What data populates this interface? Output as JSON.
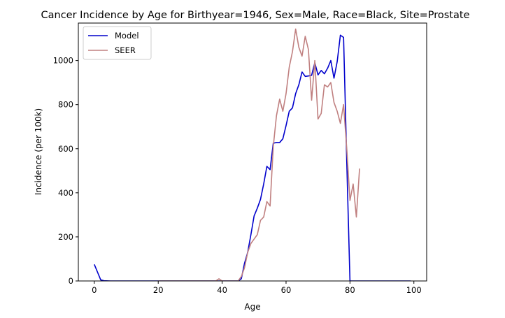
{
  "chart_data": {
    "type": "line",
    "title": "Cancer Incidence by Age for Birthyear=1946, Sex=Male, Race=Black, Site=Prostate",
    "xlabel": "Age",
    "ylabel": "Incidence (per 100k)",
    "xlim": [
      -5,
      104
    ],
    "ylim": [
      0,
      1170
    ],
    "xticks": [
      0,
      20,
      40,
      60,
      80,
      100
    ],
    "yticks": [
      0,
      200,
      400,
      600,
      800,
      1000
    ],
    "grid": false,
    "legend_position": "top-left",
    "series": [
      {
        "name": "Model",
        "color": "#0000cc",
        "points": [
          [
            0,
            75
          ],
          [
            1,
            40
          ],
          [
            2,
            5
          ],
          [
            3,
            1
          ],
          [
            5,
            0
          ],
          [
            10,
            0
          ],
          [
            20,
            0
          ],
          [
            30,
            0
          ],
          [
            40,
            0
          ],
          [
            45,
            0
          ],
          [
            46,
            10
          ],
          [
            47,
            80
          ],
          [
            48,
            130
          ],
          [
            49,
            210
          ],
          [
            50,
            295
          ],
          [
            51,
            330
          ],
          [
            52,
            370
          ],
          [
            53,
            440
          ],
          [
            54,
            520
          ],
          [
            55,
            505
          ],
          [
            56,
            625
          ],
          [
            57,
            628
          ],
          [
            58,
            628
          ],
          [
            59,
            645
          ],
          [
            60,
            705
          ],
          [
            61,
            770
          ],
          [
            62,
            785
          ],
          [
            63,
            850
          ],
          [
            64,
            890
          ],
          [
            65,
            948
          ],
          [
            66,
            928
          ],
          [
            67,
            930
          ],
          [
            68,
            933
          ],
          [
            69,
            990
          ],
          [
            70,
            935
          ],
          [
            71,
            955
          ],
          [
            72,
            940
          ],
          [
            73,
            965
          ],
          [
            74,
            1000
          ],
          [
            75,
            920
          ],
          [
            76,
            995
          ],
          [
            77,
            1115
          ],
          [
            78,
            1105
          ],
          [
            79,
            540
          ],
          [
            80,
            0
          ],
          [
            85,
            0
          ],
          [
            90,
            0
          ],
          [
            95,
            0
          ],
          [
            99,
            0
          ]
        ]
      },
      {
        "name": "SEER",
        "color": "#c08080",
        "points": [
          [
            20,
            0
          ],
          [
            30,
            0
          ],
          [
            38,
            0
          ],
          [
            39,
            10
          ],
          [
            40,
            0
          ],
          [
            44,
            0
          ],
          [
            45,
            0
          ],
          [
            46,
            20
          ],
          [
            47,
            60
          ],
          [
            48,
            130
          ],
          [
            49,
            170
          ],
          [
            50,
            190
          ],
          [
            51,
            210
          ],
          [
            52,
            275
          ],
          [
            53,
            290
          ],
          [
            54,
            360
          ],
          [
            55,
            340
          ],
          [
            56,
            610
          ],
          [
            57,
            750
          ],
          [
            58,
            825
          ],
          [
            59,
            770
          ],
          [
            60,
            850
          ],
          [
            61,
            970
          ],
          [
            62,
            1040
          ],
          [
            63,
            1143
          ],
          [
            64,
            1060
          ],
          [
            65,
            1020
          ],
          [
            66,
            1110
          ],
          [
            67,
            1050
          ],
          [
            68,
            820
          ],
          [
            69,
            1000
          ],
          [
            70,
            735
          ],
          [
            71,
            760
          ],
          [
            72,
            890
          ],
          [
            73,
            880
          ],
          [
            74,
            900
          ],
          [
            75,
            810
          ],
          [
            76,
            770
          ],
          [
            77,
            715
          ],
          [
            78,
            800
          ],
          [
            79,
            600
          ],
          [
            80,
            365
          ],
          [
            81,
            440
          ],
          [
            82,
            290
          ],
          [
            83,
            510
          ]
        ]
      }
    ]
  }
}
